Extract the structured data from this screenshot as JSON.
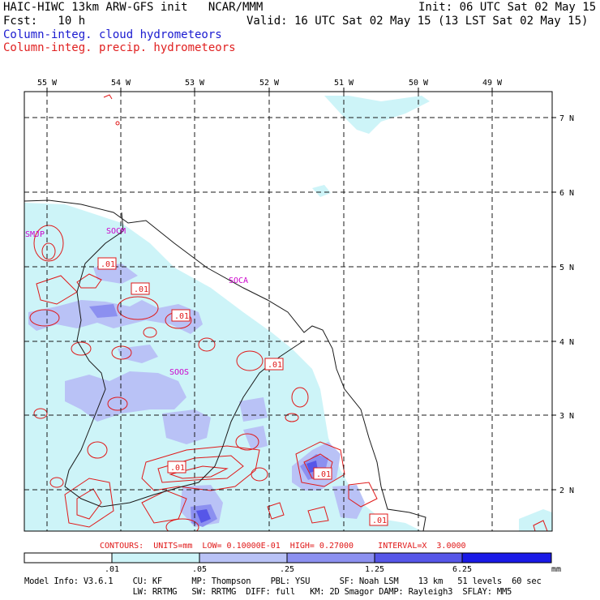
{
  "header": {
    "title": "HAIC-HIWC 13km ARW-GFS init   NCAR/MMM",
    "init": "Init: 06 UTC Sat 02 May 15",
    "fcst": "Fcst:   10 h",
    "valid": "Valid: 16 UTC Sat 02 May 15 (13 LST Sat 02 May 15)",
    "field1": "Column-integ. cloud hydrometeors",
    "field2": "Column-integ. precip. hydrometeors"
  },
  "colors": {
    "field1_text": "#1a1ad0",
    "field2_text": "#e02020",
    "contour": "#e01818",
    "border": "#1a1a1a",
    "station": "#cc00cc",
    "shade": [
      "#ffffff",
      "#cdf4f8",
      "#b9c2f6",
      "#8c90f0",
      "#5656e8",
      "#1a1ae6"
    ]
  },
  "map": {
    "lon_labels": [
      "55 W",
      "54 W",
      "53 W",
      "52 W",
      "51 W",
      "50 W",
      "49 W"
    ],
    "lat_labels": [
      "7 N",
      "6 N",
      "5 N",
      "4 N",
      "3 N",
      "2 N"
    ],
    "stations": [
      "SMJP",
      "SOCM",
      "SOCA",
      "SOOS"
    ],
    "contour_labels": [
      ".01",
      ".01",
      ".01",
      ".01",
      ".01",
      ".01",
      ".01"
    ]
  },
  "footer": {
    "contours": "CONTOURS:  UNITS=mm  LOW= 0.10000E-01  HIGH= 0.27000     INTERVAL=X  3.0000",
    "legend_ticks": [
      ".01",
      ".05",
      ".25",
      "1.25",
      "6.25"
    ],
    "legend_unit": "mm",
    "model_info_1": "Model Info: V3.6.1    CU: KF      MP: Thompson    PBL: YSU      SF: Noah LSM    13 km   51 levels  60 sec",
    "model_info_2": "                      LW: RRTMG   SW: RRTMG  DIFF: full   KM: 2D Smagor DAMP: Rayleigh3  SFLAY: MM5"
  }
}
